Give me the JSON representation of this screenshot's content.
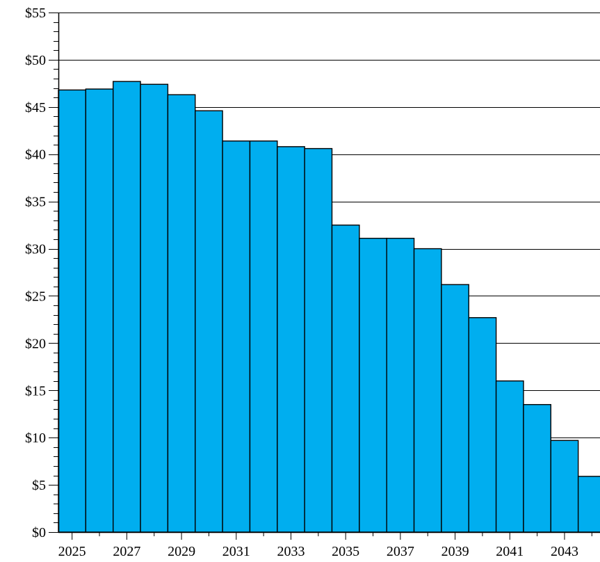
{
  "chart_data": {
    "type": "bar",
    "title": "",
    "xlabel": "",
    "ylabel": "",
    "categories": [
      "2025",
      "2026",
      "2027",
      "2028",
      "2029",
      "2030",
      "2031",
      "2032",
      "2033",
      "2034",
      "2035",
      "2036",
      "2037",
      "2038",
      "2039",
      "2040",
      "2041",
      "2042",
      "2043",
      "2044"
    ],
    "values": [
      46.8,
      46.9,
      47.7,
      47.4,
      46.3,
      44.6,
      41.4,
      41.4,
      40.8,
      40.6,
      32.5,
      31.1,
      31.1,
      30.0,
      26.2,
      22.7,
      16.0,
      13.5,
      9.7,
      5.9
    ],
    "x_tick_labels": [
      "2025",
      "2027",
      "2029",
      "2031",
      "2033",
      "2035",
      "2037",
      "2039",
      "2041",
      "2043"
    ],
    "y_tick_labels": [
      "$0",
      "$5",
      "$10",
      "$15",
      "$20",
      "$25",
      "$30",
      "$35",
      "$40",
      "$45",
      "$50",
      "$55"
    ],
    "ylim": [
      0,
      55
    ],
    "y_major_step": 5,
    "y_minor_step": 1,
    "grid": "horizontal major lines",
    "legend": "none",
    "colors": {
      "bar_fill": "#00AEEF",
      "bar_stroke": "#000000",
      "grid": "#000000",
      "axis": "#000000",
      "text": "#000000",
      "background": "#FFFFFF"
    }
  }
}
